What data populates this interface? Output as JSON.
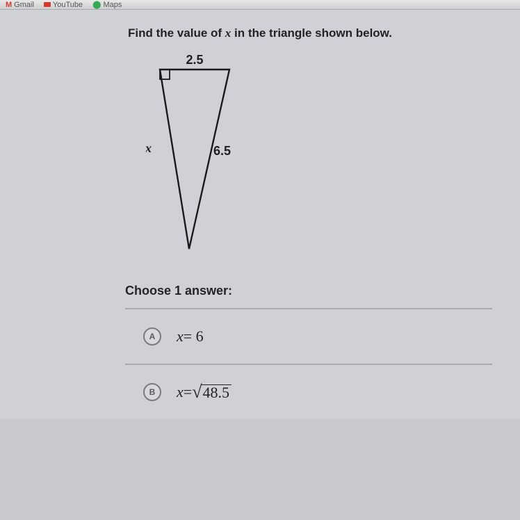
{
  "browser": {
    "bookmarks": [
      {
        "label": "Gmail",
        "icon_color": "#d33a2c"
      },
      {
        "label": "YouTube",
        "icon_color": "#d33a2c"
      },
      {
        "label": "Maps",
        "icon_color": "#4285f4"
      }
    ]
  },
  "question_prefix": "Find the value of ",
  "question_var": "x",
  "question_suffix": " in the triangle shown below.",
  "diagram": {
    "top_label": "2.5",
    "left_label": "x",
    "hyp_label": "6.5",
    "stroke": "#1a1a1d",
    "stroke_width": 2.4,
    "points": {
      "A": [
        20,
        22
      ],
      "B": [
        120,
        22
      ],
      "C": [
        62,
        280
      ]
    },
    "right_angle_size": 14,
    "label_font_size": 18,
    "label_font_weight": 700,
    "label_color": "#1f1f22"
  },
  "answer_header": "Choose 1 answer:",
  "options": [
    {
      "letter": "A",
      "var": "x",
      "eq": " = 6",
      "sqrt": false
    },
    {
      "letter": "B",
      "var": "x",
      "eq": " = ",
      "sqrt": true,
      "radicand": "48.5"
    }
  ]
}
